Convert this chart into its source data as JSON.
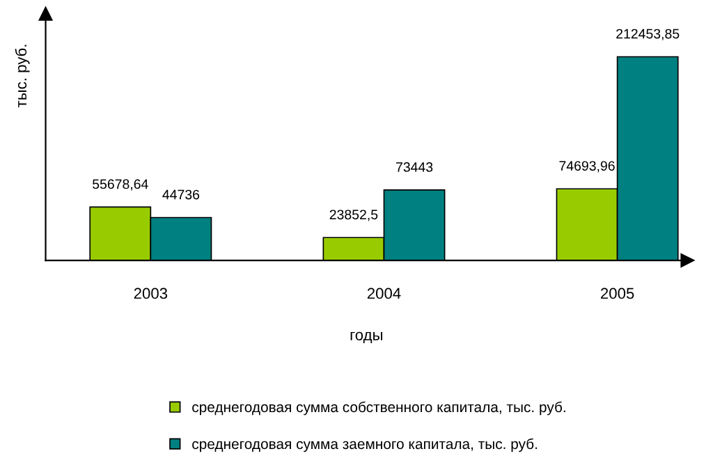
{
  "chart_data": {
    "type": "bar",
    "xlabel": "годы",
    "ylabel": "тыс. руб.",
    "categories": [
      "2003",
      "2004",
      "2005"
    ],
    "series": [
      {
        "name": "среднегодовая сумма собственного капитала, тыс. руб.",
        "color": "#99cc00",
        "values": [
          55678.64,
          23852.5,
          74693.96
        ],
        "value_labels": [
          "55678,64",
          "23852,5",
          "74693,96"
        ]
      },
      {
        "name": "среднегодовая сумма заемного капитала, тыс. руб.",
        "color": "#008080",
        "values": [
          44736,
          73443,
          212453.85
        ],
        "value_labels": [
          "44736",
          "73443",
          "212453,85"
        ]
      }
    ],
    "grid": false,
    "legend": "bottom"
  }
}
